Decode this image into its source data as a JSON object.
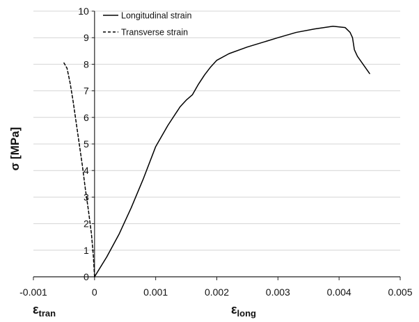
{
  "chart_data": {
    "type": "line",
    "title": "",
    "xlabel": "ε_long",
    "xlabel_main": "ε",
    "xlabel_sub": "long",
    "xlabel_secondary": "ε_tran",
    "xlabel_secondary_main": "ε",
    "xlabel_secondary_sub": "tran",
    "ylabel": "σ [MPa]",
    "xlim": [
      -0.001,
      0.005
    ],
    "ylim": [
      0,
      10
    ],
    "xticks": [
      -0.001,
      0,
      0.001,
      0.002,
      0.003,
      0.004,
      0.005
    ],
    "xtick_labels": [
      "-0.001",
      "0",
      "0.001",
      "0.002",
      "0.003",
      "0.004",
      "0.005"
    ],
    "yticks": [
      0,
      1,
      2,
      3,
      4,
      5,
      6,
      7,
      8,
      9,
      10
    ],
    "ytick_labels": [
      "0",
      "1",
      "2",
      "3",
      "4",
      "5",
      "6",
      "7",
      "8",
      "9",
      "10"
    ],
    "grid": "horizontal",
    "legend_position": "top-left",
    "series": [
      {
        "name": "Longitudinal strain",
        "style": "solid",
        "color": "#000000",
        "x": [
          0,
          0.0002,
          0.0004,
          0.0006,
          0.0008,
          0.001,
          0.0012,
          0.0014,
          0.0015,
          0.0016,
          0.0017,
          0.0018,
          0.0019,
          0.002,
          0.0022,
          0.0025,
          0.003,
          0.0033,
          0.0036,
          0.0039,
          0.0041,
          0.00418,
          0.00422,
          0.00425,
          0.0043,
          0.0045
        ],
        "y": [
          0,
          0.75,
          1.6,
          2.6,
          3.7,
          4.9,
          5.7,
          6.4,
          6.65,
          6.85,
          7.25,
          7.6,
          7.9,
          8.15,
          8.4,
          8.65,
          9.0,
          9.2,
          9.33,
          9.43,
          9.38,
          9.2,
          9.0,
          8.55,
          8.3,
          7.65
        ]
      },
      {
        "name": "Transverse strain",
        "style": "dashed",
        "color": "#000000",
        "x": [
          0,
          -2e-05,
          -5e-05,
          -0.0001,
          -0.00015,
          -0.0002,
          -0.00025,
          -0.0003,
          -0.00035,
          -0.0004,
          -0.00045,
          -0.0005
        ],
        "y": [
          0,
          0.8,
          1.6,
          2.5,
          3.3,
          4.2,
          5.0,
          5.8,
          6.6,
          7.3,
          7.85,
          8.05
        ]
      }
    ]
  }
}
